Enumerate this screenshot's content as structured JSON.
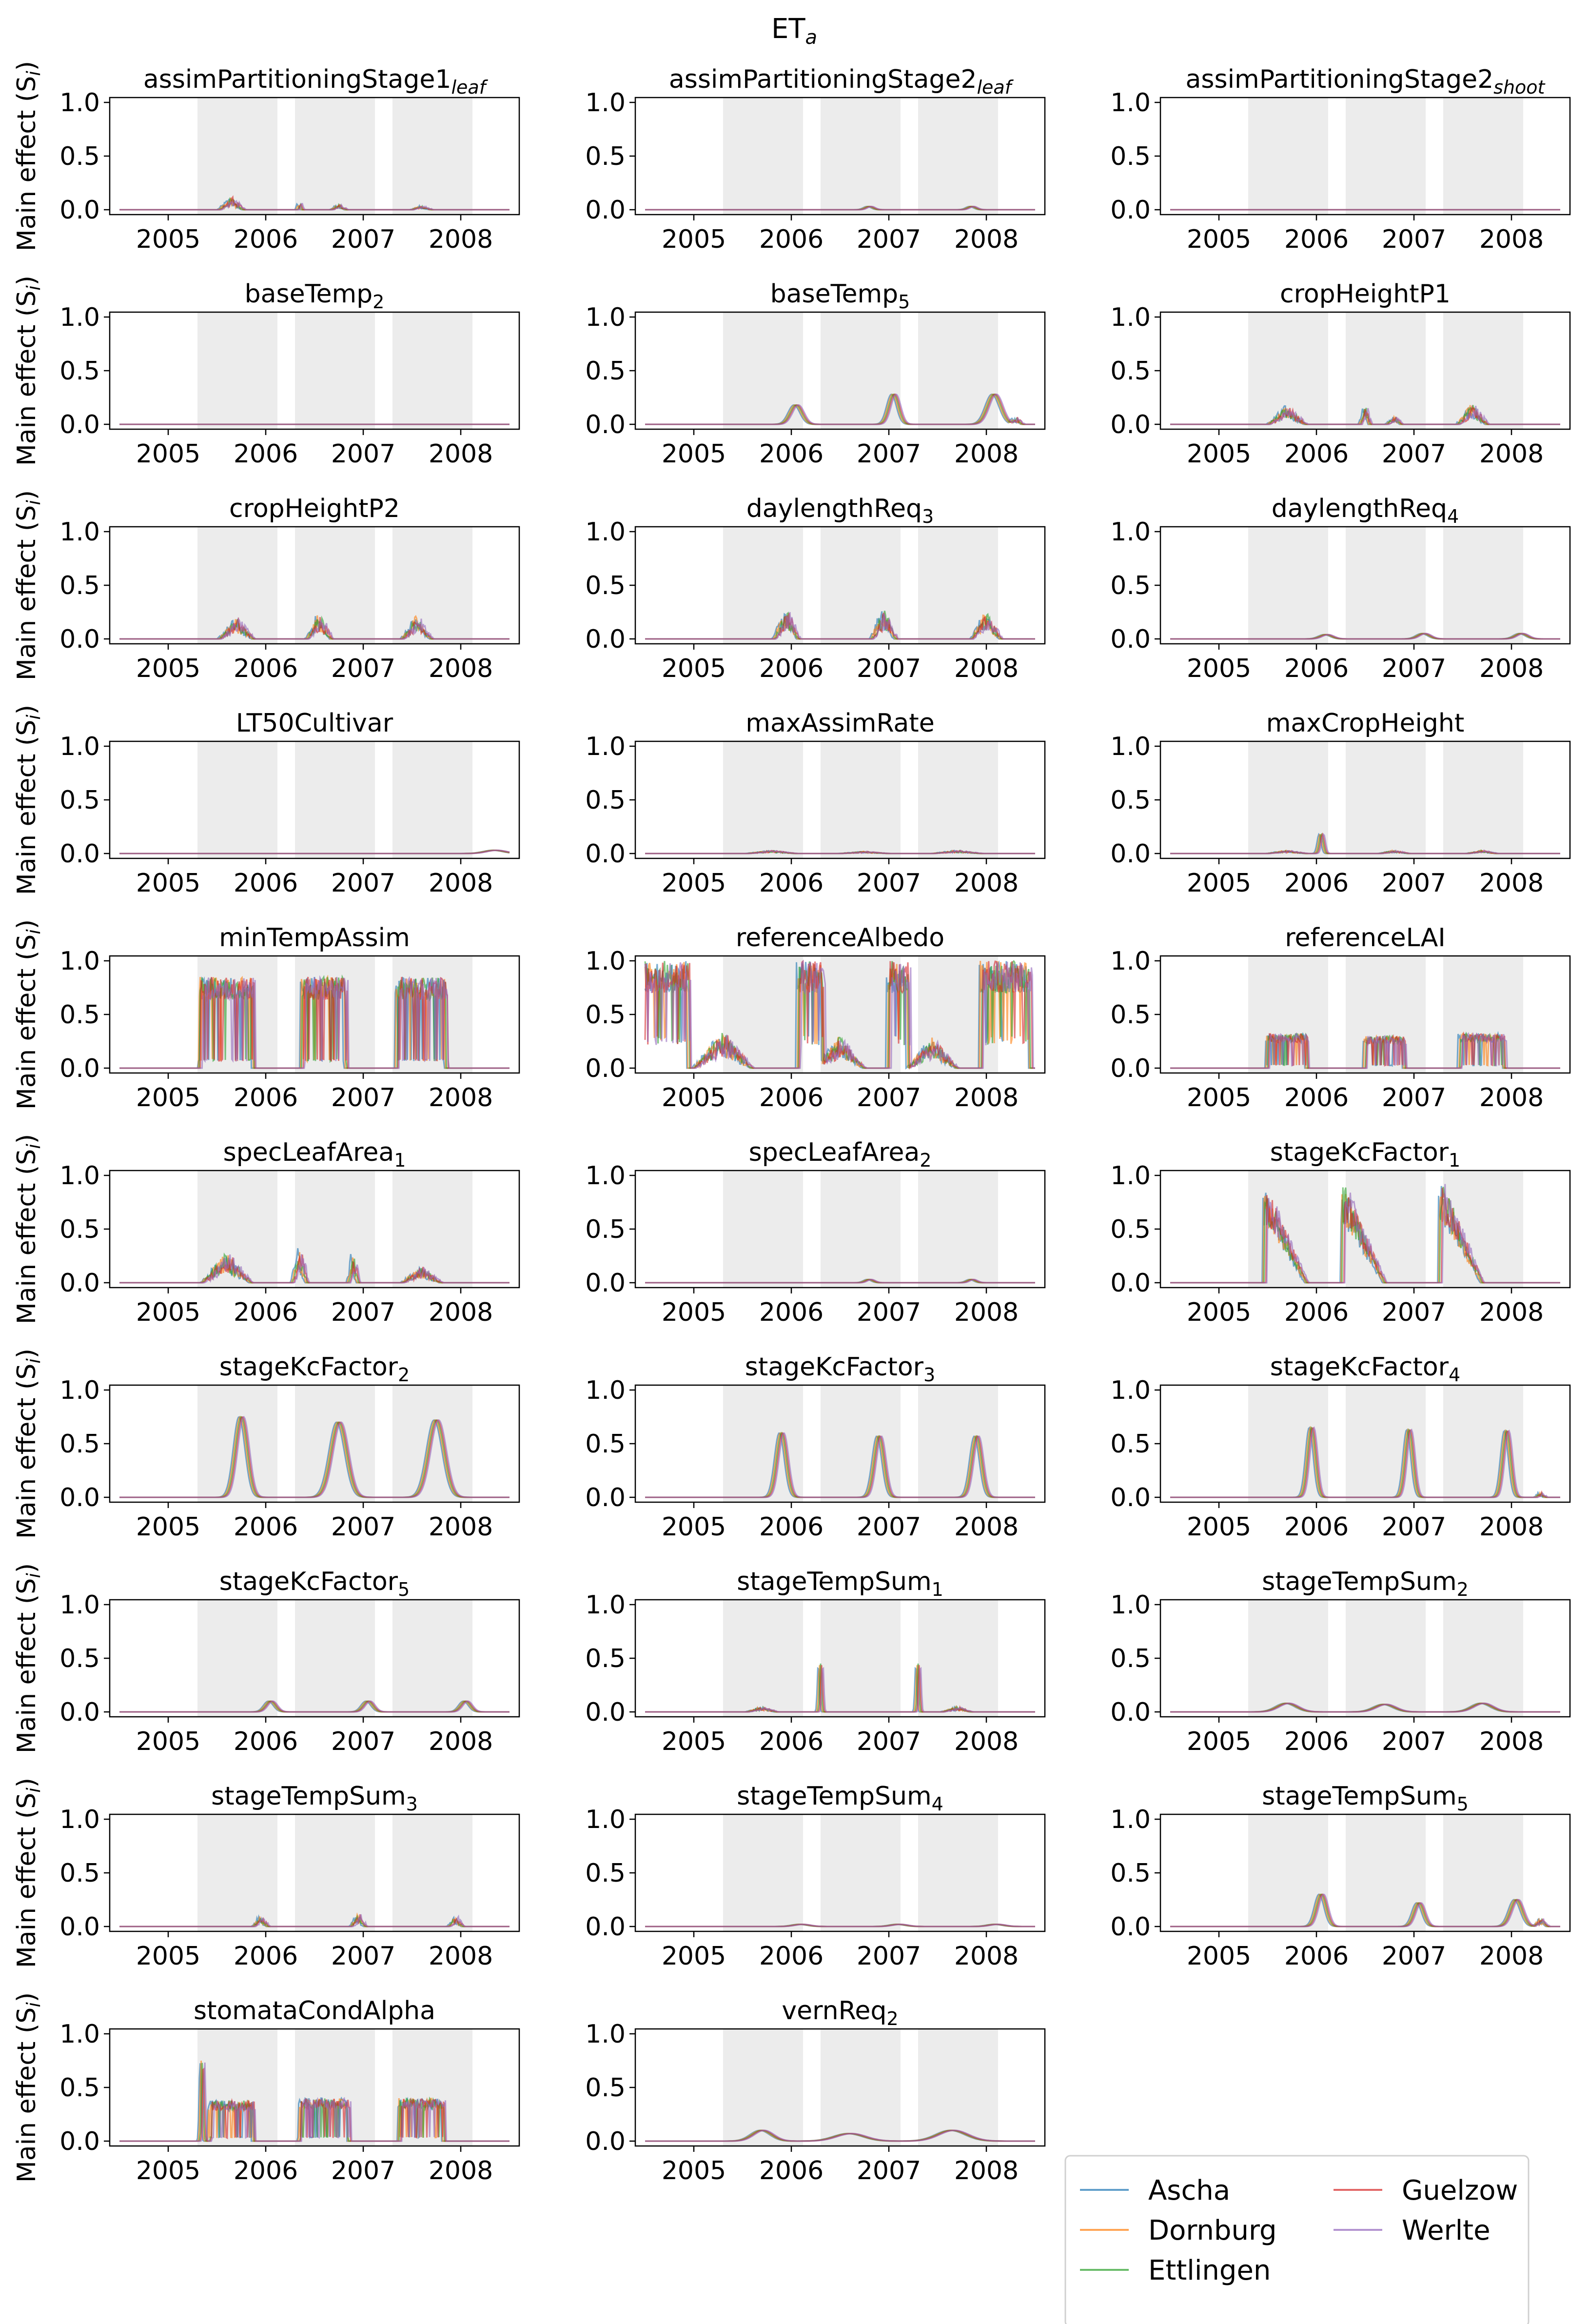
{
  "figure": {
    "title": "ET",
    "title_sub": "a"
  },
  "colors": {
    "Ascha": "#1f77b4",
    "Dornburg": "#ff7f0e",
    "Ettlingen": "#2ca02c",
    "Guelzow": "#d62728",
    "Werlte": "#9467bd",
    "shade": "#ececec"
  },
  "legend": {
    "entries": [
      "Ascha",
      "Dornburg",
      "Ettlingen",
      "Guelzow",
      "Werlte"
    ],
    "placement": "lower-right"
  },
  "chart_data": {
    "type": "line",
    "ylabel": "Main effect (S",
    "ylabel_sub": "i",
    "ylabel_end": ")",
    "ylim": [
      0,
      1
    ],
    "yticks": [
      "0.0",
      "0.5",
      "1.0"
    ],
    "xlim": [
      2004.4,
      2008.6
    ],
    "xticks": [
      "2005",
      "2006",
      "2007",
      "2008"
    ],
    "shaded_periods": [
      [
        2005.3,
        2006.12
      ],
      [
        2006.3,
        2007.12
      ],
      [
        2007.3,
        2008.12
      ]
    ],
    "panels": [
      {
        "name": "assimPartitioningStage1",
        "sub": "leaf",
        "peaks": [
          [
            2005.65,
            0.12,
            0.25,
            "noisy"
          ],
          [
            2006.35,
            0.08,
            0.05,
            "noisy"
          ],
          [
            2006.75,
            0.05,
            0.15,
            "noisy"
          ],
          [
            2007.6,
            0.04,
            0.2,
            "noisy"
          ]
        ]
      },
      {
        "name": "assimPartitioningStage2",
        "sub": "leaf",
        "peaks": [
          [
            2006.8,
            0.03,
            0.04,
            "smooth"
          ],
          [
            2007.85,
            0.03,
            0.04,
            "smooth"
          ]
        ]
      },
      {
        "name": "assimPartitioningStage2",
        "sub": "shoot",
        "peaks": []
      },
      {
        "name": "baseTemp",
        "sub": "2",
        "peaks": []
      },
      {
        "name": "baseTemp",
        "sub": "5",
        "peaks": [
          [
            2006.05,
            0.18,
            0.06,
            "smooth"
          ],
          [
            2007.05,
            0.28,
            0.05,
            "smooth"
          ],
          [
            2008.08,
            0.28,
            0.07,
            "smooth"
          ],
          [
            2008.3,
            0.08,
            0.15,
            "noisy"
          ]
        ]
      },
      {
        "name": "cropHeightP1",
        "sub": "",
        "peaks": [
          [
            2005.7,
            0.18,
            0.38,
            "noisy"
          ],
          [
            2006.5,
            0.2,
            0.1,
            "noisy"
          ],
          [
            2006.8,
            0.08,
            0.15,
            "noisy"
          ],
          [
            2007.6,
            0.2,
            0.3,
            "noisy"
          ]
        ]
      },
      {
        "name": "cropHeightP2",
        "sub": "",
        "peaks": [
          [
            2005.7,
            0.2,
            0.35,
            "noisy"
          ],
          [
            2006.55,
            0.25,
            0.25,
            "noisy"
          ],
          [
            2007.55,
            0.22,
            0.3,
            "noisy"
          ]
        ]
      },
      {
        "name": "daylengthReq",
        "sub": "3",
        "peaks": [
          [
            2005.95,
            0.3,
            0.25,
            "noisy"
          ],
          [
            2006.95,
            0.3,
            0.25,
            "noisy"
          ],
          [
            2008.0,
            0.26,
            0.3,
            "noisy"
          ]
        ]
      },
      {
        "name": "daylengthReq",
        "sub": "4",
        "peaks": [
          [
            2006.1,
            0.04,
            0.06,
            "smooth"
          ],
          [
            2007.1,
            0.05,
            0.06,
            "smooth"
          ],
          [
            2008.1,
            0.05,
            0.06,
            "smooth"
          ]
        ]
      },
      {
        "name": "LT50Cultivar",
        "sub": "",
        "peaks": [
          [
            2008.35,
            0.03,
            0.1,
            "smooth"
          ]
        ]
      },
      {
        "name": "maxAssimRate",
        "sub": "",
        "peaks": [
          [
            2005.8,
            0.03,
            0.5,
            "noisy"
          ],
          [
            2006.75,
            0.02,
            0.5,
            "noisy"
          ],
          [
            2007.7,
            0.03,
            0.5,
            "noisy"
          ]
        ]
      },
      {
        "name": "maxCropHeight",
        "sub": "",
        "peaks": [
          [
            2006.05,
            0.18,
            0.02,
            "smooth"
          ],
          [
            2005.7,
            0.03,
            0.4,
            "noisy"
          ],
          [
            2006.8,
            0.03,
            0.3,
            "noisy"
          ],
          [
            2007.7,
            0.03,
            0.3,
            "noisy"
          ]
        ]
      },
      {
        "name": "minTempAssim",
        "sub": "",
        "peaks": [
          [
            2005.6,
            0.85,
            0.55,
            "block"
          ],
          [
            2006.6,
            0.85,
            0.45,
            "block"
          ],
          [
            2007.6,
            0.85,
            0.5,
            "block"
          ]
        ]
      },
      {
        "name": "referenceAlbedo",
        "sub": "",
        "peaks": [
          [
            2004.6,
            1.0,
            0.7,
            "albedo"
          ],
          [
            2005.3,
            0.35,
            0.6,
            "noisy"
          ],
          [
            2006.2,
            1.0,
            0.25,
            "albedo"
          ],
          [
            2006.5,
            0.3,
            0.5,
            "noisy"
          ],
          [
            2007.1,
            1.0,
            0.2,
            "albedo"
          ],
          [
            2007.45,
            0.3,
            0.5,
            "noisy"
          ],
          [
            2008.2,
            1.0,
            0.5,
            "albedo"
          ]
        ]
      },
      {
        "name": "referenceLAI",
        "sub": "",
        "peaks": [
          [
            2005.7,
            0.32,
            0.4,
            "block"
          ],
          [
            2006.7,
            0.3,
            0.4,
            "block"
          ],
          [
            2007.7,
            0.32,
            0.45,
            "block"
          ]
        ]
      },
      {
        "name": "specLeafArea",
        "sub": "1",
        "peaks": [
          [
            2005.6,
            0.3,
            0.5,
            "noisy"
          ],
          [
            2006.35,
            0.35,
            0.15,
            "noisy"
          ],
          [
            2006.9,
            0.3,
            0.1,
            "noisy"
          ],
          [
            2007.6,
            0.15,
            0.4,
            "noisy"
          ]
        ]
      },
      {
        "name": "specLeafArea",
        "sub": "2",
        "peaks": [
          [
            2006.8,
            0.03,
            0.04,
            "smooth"
          ],
          [
            2007.85,
            0.03,
            0.04,
            "smooth"
          ]
        ]
      },
      {
        "name": "stageKcFactor",
        "sub": "1",
        "peaks": [
          [
            2005.5,
            0.88,
            0.4,
            "decay"
          ],
          [
            2006.3,
            0.9,
            0.4,
            "decay"
          ],
          [
            2007.3,
            0.95,
            0.4,
            "decay"
          ]
        ]
      },
      {
        "name": "stageKcFactor",
        "sub": "2",
        "peaks": [
          [
            2005.75,
            0.75,
            0.06,
            "smooth"
          ],
          [
            2006.75,
            0.7,
            0.08,
            "smooth"
          ],
          [
            2007.75,
            0.72,
            0.08,
            "smooth"
          ]
        ]
      },
      {
        "name": "stageKcFactor",
        "sub": "3",
        "peaks": [
          [
            2005.9,
            0.6,
            0.05,
            "smooth"
          ],
          [
            2006.9,
            0.57,
            0.05,
            "smooth"
          ],
          [
            2007.9,
            0.57,
            0.05,
            "smooth"
          ]
        ]
      },
      {
        "name": "stageKcFactor",
        "sub": "4",
        "peaks": [
          [
            2005.95,
            0.65,
            0.04,
            "smooth"
          ],
          [
            2006.95,
            0.63,
            0.04,
            "smooth"
          ],
          [
            2007.95,
            0.62,
            0.04,
            "smooth"
          ],
          [
            2008.3,
            0.05,
            0.1,
            "noisy"
          ]
        ]
      },
      {
        "name": "stageKcFactor",
        "sub": "5",
        "peaks": [
          [
            2006.05,
            0.1,
            0.05,
            "smooth"
          ],
          [
            2007.05,
            0.1,
            0.05,
            "smooth"
          ],
          [
            2008.05,
            0.1,
            0.05,
            "smooth"
          ]
        ]
      },
      {
        "name": "stageTempSum",
        "sub": "1",
        "peaks": [
          [
            2006.3,
            0.45,
            0.01,
            "smooth"
          ],
          [
            2007.3,
            0.45,
            0.01,
            "smooth"
          ],
          [
            2005.7,
            0.05,
            0.3,
            "noisy"
          ],
          [
            2007.7,
            0.05,
            0.3,
            "noisy"
          ]
        ]
      },
      {
        "name": "stageTempSum",
        "sub": "2",
        "peaks": [
          [
            2005.7,
            0.08,
            0.1,
            "smooth"
          ],
          [
            2006.7,
            0.07,
            0.1,
            "smooth"
          ],
          [
            2007.7,
            0.08,
            0.1,
            "smooth"
          ]
        ]
      },
      {
        "name": "stageTempSum",
        "sub": "3",
        "peaks": [
          [
            2005.95,
            0.1,
            0.15,
            "noisy"
          ],
          [
            2006.95,
            0.12,
            0.15,
            "noisy"
          ],
          [
            2007.95,
            0.1,
            0.15,
            "noisy"
          ]
        ]
      },
      {
        "name": "stageTempSum",
        "sub": "4",
        "peaks": [
          [
            2006.1,
            0.02,
            0.08,
            "smooth"
          ],
          [
            2007.1,
            0.02,
            0.08,
            "smooth"
          ],
          [
            2008.1,
            0.02,
            0.08,
            "smooth"
          ]
        ]
      },
      {
        "name": "stageTempSum",
        "sub": "5",
        "peaks": [
          [
            2006.05,
            0.3,
            0.05,
            "smooth"
          ],
          [
            2007.05,
            0.22,
            0.05,
            "smooth"
          ],
          [
            2008.05,
            0.25,
            0.06,
            "smooth"
          ],
          [
            2008.3,
            0.08,
            0.15,
            "noisy"
          ]
        ]
      },
      {
        "name": "stomataCondAlpha",
        "sub": "",
        "peaks": [
          [
            2005.65,
            0.38,
            0.45,
            "block"
          ],
          [
            2006.6,
            0.4,
            0.5,
            "block"
          ],
          [
            2007.6,
            0.4,
            0.45,
            "block"
          ],
          [
            2005.35,
            0.75,
            0.01,
            "smooth"
          ]
        ]
      },
      {
        "name": "vernReq",
        "sub": "2",
        "peaks": [
          [
            2005.7,
            0.1,
            0.1,
            "smooth"
          ],
          [
            2006.6,
            0.07,
            0.15,
            "smooth"
          ],
          [
            2007.65,
            0.1,
            0.15,
            "smooth"
          ]
        ]
      }
    ]
  }
}
